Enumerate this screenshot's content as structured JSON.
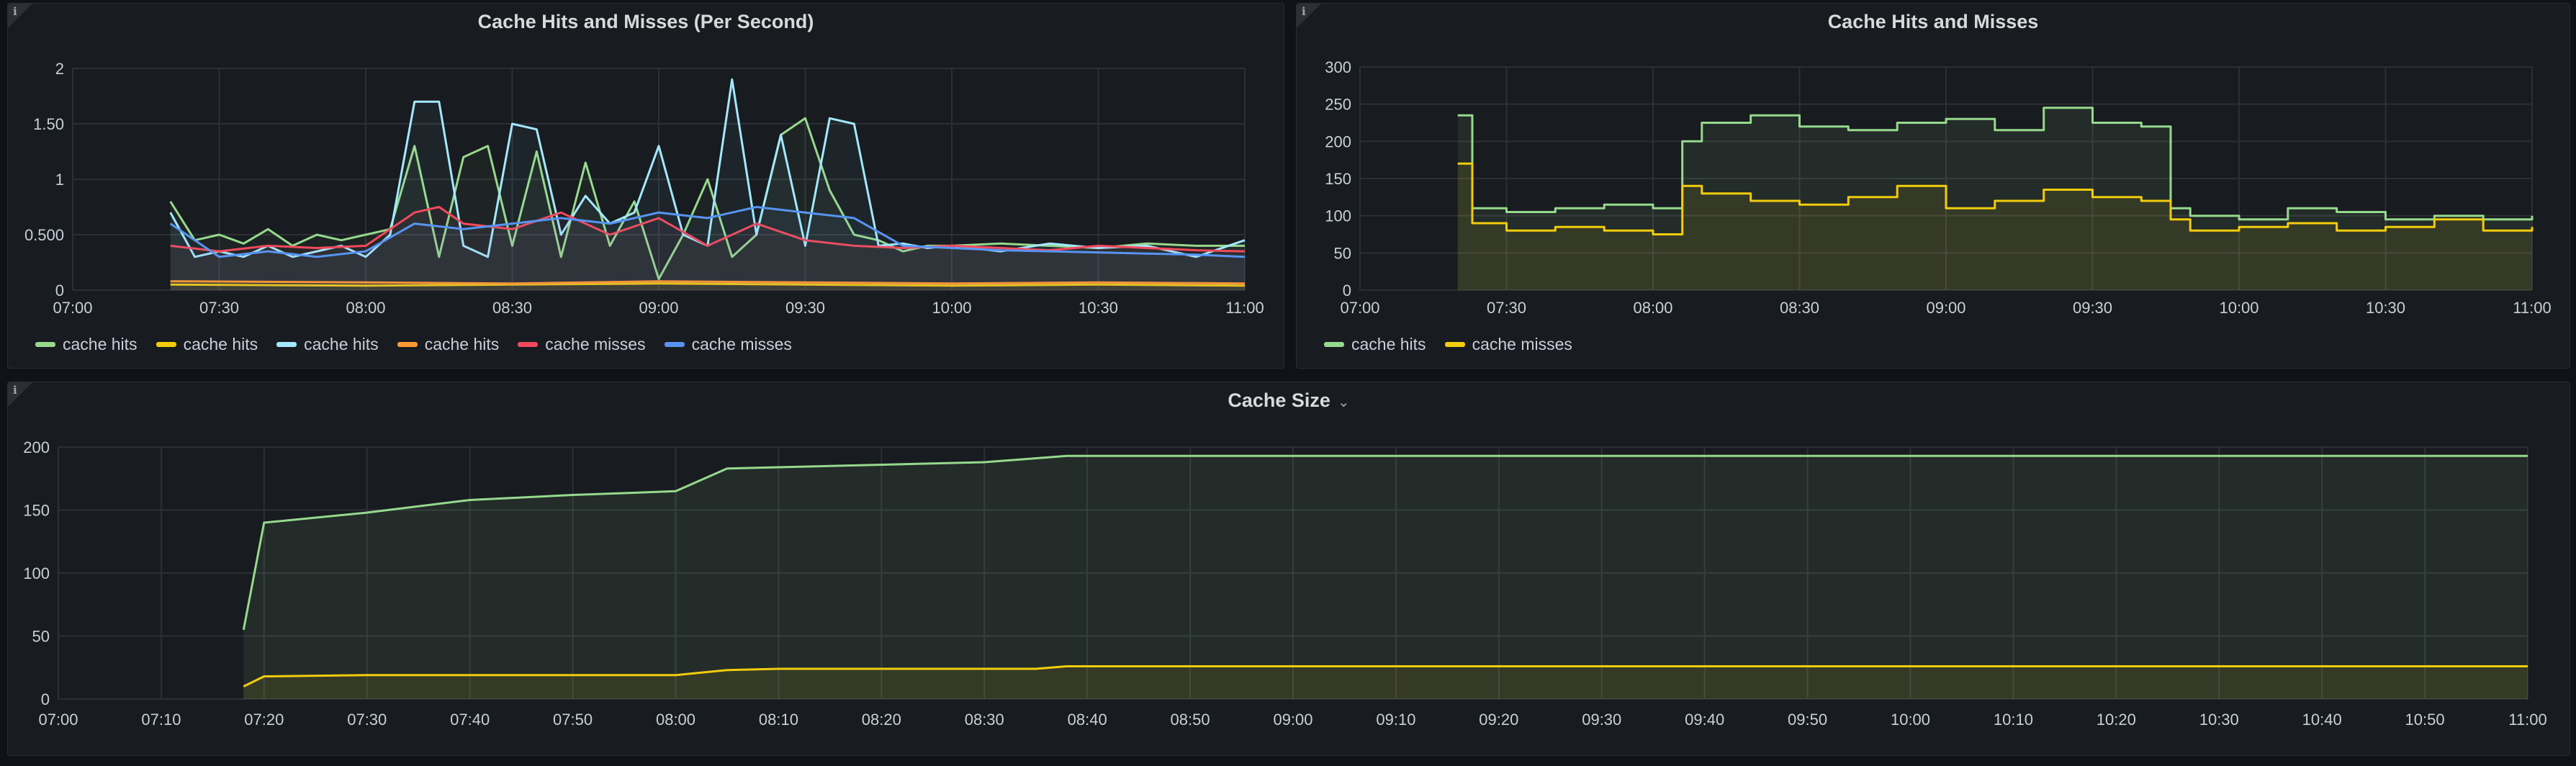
{
  "panels": {
    "p1": {
      "title": "Cache Hits and Misses (Per Second)"
    },
    "p2": {
      "title": "Cache Hits and Misses"
    },
    "p3": {
      "title": "Cache Size"
    }
  },
  "colors": {
    "green": "#96d98d",
    "yellow": "#f2cc0c",
    "lightblue": "#8ab8ff",
    "cyan": "#a3e8ff",
    "orange": "#ff9830",
    "red": "#f2495c",
    "blue": "#5794f2"
  },
  "icons": {
    "info": "info-icon",
    "caret": "chevron-down-icon"
  },
  "chart_data": [
    {
      "type": "line",
      "title": "Cache Hits and Misses (Per Second)",
      "xlim": [
        "07:00",
        "11:00"
      ],
      "ylim": [
        0,
        2
      ],
      "xticks": [
        "07:00",
        "07:30",
        "08:00",
        "08:30",
        "09:00",
        "09:30",
        "10:00",
        "10:30",
        "11:00"
      ],
      "yticks": [
        "0",
        "0.500",
        "1",
        "1.50",
        "2"
      ],
      "legend_position": "bottom-left",
      "grid": true,
      "series": [
        {
          "name": "cache hits",
          "color": "#96d98d",
          "x": [
            "07:20",
            "07:25",
            "07:30",
            "07:35",
            "07:40",
            "07:45",
            "07:50",
            "07:55",
            "08:00",
            "08:05",
            "08:10",
            "08:15",
            "08:20",
            "08:25",
            "08:30",
            "08:35",
            "08:40",
            "08:45",
            "08:50",
            "08:55",
            "09:00",
            "09:05",
            "09:10",
            "09:15",
            "09:20",
            "09:25",
            "09:30",
            "09:35",
            "09:40",
            "09:45",
            "09:50",
            "09:55",
            "10:00",
            "10:10",
            "10:20",
            "10:30",
            "10:40",
            "10:50",
            "11:00"
          ],
          "values": [
            0.8,
            0.45,
            0.5,
            0.42,
            0.55,
            0.4,
            0.5,
            0.45,
            0.5,
            0.55,
            1.3,
            0.3,
            1.2,
            1.3,
            0.4,
            1.25,
            0.3,
            1.15,
            0.4,
            0.8,
            0.1,
            0.5,
            1.0,
            0.3,
            0.5,
            1.4,
            1.55,
            0.9,
            0.5,
            0.45,
            0.35,
            0.4,
            0.4,
            0.42,
            0.4,
            0.38,
            0.42,
            0.4,
            0.4
          ]
        },
        {
          "name": "cache hits",
          "color": "#f2cc0c",
          "x": [
            "07:20",
            "08:00",
            "08:30",
            "09:00",
            "09:30",
            "10:00",
            "10:30",
            "11:00"
          ],
          "values": [
            0.05,
            0.04,
            0.05,
            0.06,
            0.05,
            0.04,
            0.05,
            0.04
          ]
        },
        {
          "name": "cache hits",
          "color": "#a3e8ff",
          "x": [
            "07:20",
            "07:25",
            "07:30",
            "07:35",
            "07:40",
            "07:45",
            "07:50",
            "07:55",
            "08:00",
            "08:05",
            "08:10",
            "08:15",
            "08:20",
            "08:25",
            "08:30",
            "08:35",
            "08:40",
            "08:45",
            "08:50",
            "08:55",
            "09:00",
            "09:05",
            "09:10",
            "09:15",
            "09:20",
            "09:25",
            "09:30",
            "09:35",
            "09:40",
            "09:45",
            "09:50",
            "09:55",
            "10:00",
            "10:10",
            "10:20",
            "10:30",
            "10:40",
            "10:50",
            "11:00"
          ],
          "values": [
            0.7,
            0.3,
            0.35,
            0.3,
            0.4,
            0.3,
            0.35,
            0.4,
            0.3,
            0.5,
            1.7,
            1.7,
            0.4,
            0.3,
            1.5,
            1.45,
            0.5,
            0.85,
            0.6,
            0.7,
            1.3,
            0.5,
            0.4,
            1.9,
            0.5,
            1.4,
            0.4,
            1.55,
            1.5,
            0.4,
            0.42,
            0.38,
            0.4,
            0.35,
            0.42,
            0.38,
            0.4,
            0.3,
            0.45
          ]
        },
        {
          "name": "cache hits",
          "color": "#ff9830",
          "x": [
            "07:20",
            "08:00",
            "08:30",
            "09:00",
            "09:30",
            "10:00",
            "10:30",
            "11:00"
          ],
          "values": [
            0.08,
            0.07,
            0.06,
            0.08,
            0.07,
            0.06,
            0.07,
            0.06
          ]
        },
        {
          "name": "cache misses",
          "color": "#f2495c",
          "x": [
            "07:20",
            "07:30",
            "07:40",
            "07:50",
            "08:00",
            "08:10",
            "08:15",
            "08:20",
            "08:30",
            "08:40",
            "08:50",
            "09:00",
            "09:10",
            "09:20",
            "09:30",
            "09:40",
            "09:50",
            "10:00",
            "10:10",
            "10:20",
            "10:30",
            "10:40",
            "10:50",
            "11:00"
          ],
          "values": [
            0.4,
            0.35,
            0.4,
            0.38,
            0.4,
            0.7,
            0.75,
            0.6,
            0.55,
            0.7,
            0.5,
            0.65,
            0.4,
            0.6,
            0.45,
            0.4,
            0.38,
            0.4,
            0.38,
            0.36,
            0.4,
            0.38,
            0.36,
            0.35
          ]
        },
        {
          "name": "cache misses",
          "color": "#5794f2",
          "x": [
            "07:20",
            "07:30",
            "07:40",
            "07:50",
            "08:00",
            "08:10",
            "08:20",
            "08:30",
            "08:40",
            "08:50",
            "09:00",
            "09:10",
            "09:20",
            "09:30",
            "09:40",
            "09:50",
            "10:00",
            "10:10",
            "10:20",
            "10:30",
            "10:40",
            "10:50",
            "11:00"
          ],
          "values": [
            0.6,
            0.3,
            0.35,
            0.3,
            0.35,
            0.6,
            0.55,
            0.6,
            0.65,
            0.6,
            0.7,
            0.65,
            0.75,
            0.7,
            0.65,
            0.4,
            0.38,
            0.36,
            0.35,
            0.34,
            0.33,
            0.32,
            0.3
          ]
        }
      ]
    },
    {
      "type": "line",
      "title": "Cache Hits and Misses",
      "xlim": [
        "07:00",
        "11:00"
      ],
      "ylim": [
        0,
        300
      ],
      "xticks": [
        "07:00",
        "07:30",
        "08:00",
        "08:30",
        "09:00",
        "09:30",
        "10:00",
        "10:30",
        "11:00"
      ],
      "yticks": [
        "0",
        "50",
        "100",
        "150",
        "200",
        "250",
        "300"
      ],
      "legend_position": "bottom-left",
      "grid": true,
      "series": [
        {
          "name": "cache hits",
          "color": "#96d98d",
          "x": [
            "07:20",
            "07:23",
            "07:30",
            "07:40",
            "07:50",
            "08:00",
            "08:06",
            "08:10",
            "08:20",
            "08:30",
            "08:40",
            "08:50",
            "09:00",
            "09:10",
            "09:20",
            "09:30",
            "09:40",
            "09:46",
            "09:50",
            "10:00",
            "10:10",
            "10:20",
            "10:30",
            "10:40",
            "10:50",
            "11:00"
          ],
          "values": [
            235,
            110,
            105,
            110,
            115,
            110,
            200,
            225,
            235,
            220,
            215,
            225,
            230,
            215,
            245,
            225,
            220,
            110,
            100,
            95,
            110,
            105,
            95,
            100,
            95,
            100
          ]
        },
        {
          "name": "cache misses",
          "color": "#f2cc0c",
          "x": [
            "07:20",
            "07:23",
            "07:30",
            "07:40",
            "07:50",
            "08:00",
            "08:06",
            "08:10",
            "08:20",
            "08:30",
            "08:40",
            "08:50",
            "09:00",
            "09:10",
            "09:20",
            "09:30",
            "09:40",
            "09:46",
            "09:50",
            "10:00",
            "10:10",
            "10:20",
            "10:30",
            "10:40",
            "10:50",
            "11:00"
          ],
          "values": [
            170,
            90,
            80,
            85,
            80,
            75,
            140,
            130,
            120,
            115,
            125,
            140,
            110,
            120,
            135,
            125,
            120,
            95,
            80,
            85,
            90,
            80,
            85,
            95,
            80,
            85
          ]
        }
      ]
    },
    {
      "type": "area",
      "title": "Cache Size",
      "xlim": [
        "07:00",
        "11:00"
      ],
      "ylim": [
        0,
        200
      ],
      "xticks": [
        "07:00",
        "07:10",
        "07:20",
        "07:30",
        "07:40",
        "07:50",
        "08:00",
        "08:10",
        "08:20",
        "08:30",
        "08:40",
        "08:50",
        "09:00",
        "09:10",
        "09:20",
        "09:30",
        "09:40",
        "09:50",
        "10:00",
        "10:10",
        "10:20",
        "10:30",
        "10:40",
        "10:50",
        "11:00"
      ],
      "yticks": [
        "0",
        "50",
        "100",
        "150",
        "200"
      ],
      "grid": true,
      "series": [
        {
          "color": "#96d98d",
          "x": [
            "07:18",
            "07:20",
            "07:30",
            "07:40",
            "07:50",
            "08:00",
            "08:05",
            "08:10",
            "08:30",
            "08:38",
            "09:00",
            "10:00",
            "11:00"
          ],
          "values": [
            55,
            140,
            148,
            158,
            162,
            165,
            183,
            184,
            188,
            193,
            193,
            193,
            193
          ]
        },
        {
          "color": "#f2cc0c",
          "x": [
            "07:18",
            "07:20",
            "07:30",
            "08:00",
            "08:05",
            "08:10",
            "08:35",
            "08:38",
            "09:00",
            "10:00",
            "11:00"
          ],
          "values": [
            10,
            18,
            19,
            19,
            23,
            24,
            24,
            26,
            26,
            26,
            26
          ]
        }
      ]
    }
  ]
}
